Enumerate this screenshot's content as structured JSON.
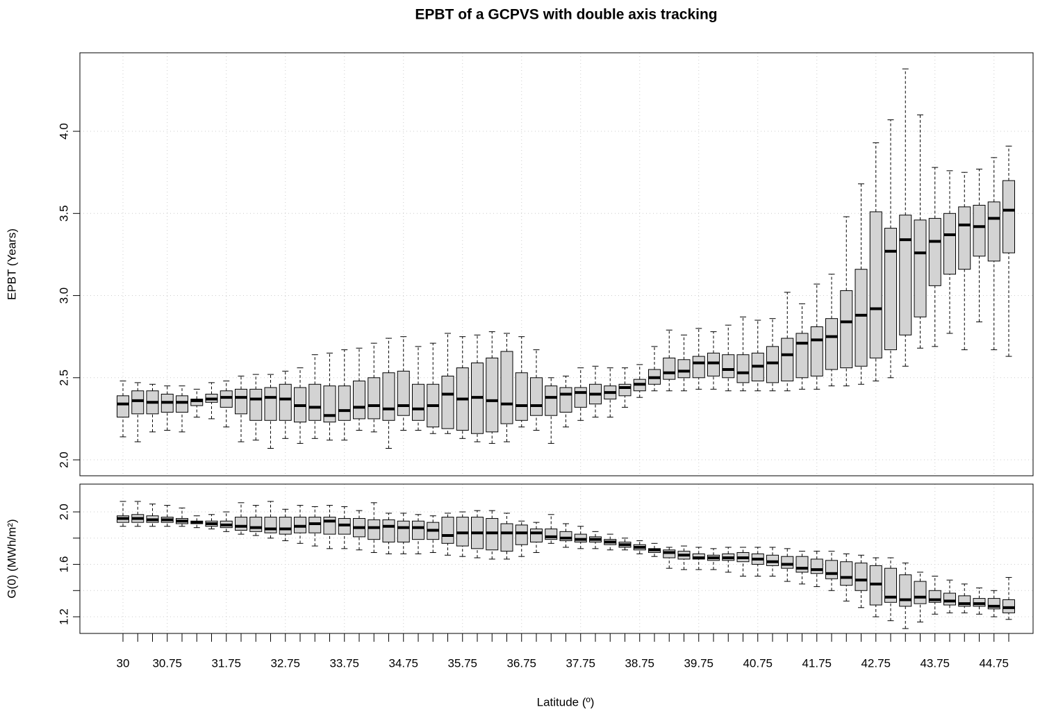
{
  "chart_data": [
    {
      "type": "boxplot",
      "title": "EPBT of a GCPVS with double axis tracking",
      "ylabel": "EPBT (Years)",
      "color": "#d3d3d3",
      "grid": true,
      "ylim": [
        1.903,
        4.478
      ],
      "yticks": [
        {
          "value": 2,
          "label": "2.0"
        },
        2.5,
        {
          "value": 3,
          "label": "3.0"
        },
        3.5,
        {
          "value": 4,
          "label": "4.0"
        }
      ],
      "boxes": [
        [
          2.14,
          2.26,
          2.34,
          2.39,
          2.48
        ],
        [
          2.11,
          2.28,
          2.36,
          2.42,
          2.47
        ],
        [
          2.17,
          2.28,
          2.35,
          2.42,
          2.46
        ],
        [
          2.18,
          2.29,
          2.35,
          2.4,
          2.45
        ],
        [
          2.17,
          2.29,
          2.35,
          2.39,
          2.45
        ],
        [
          2.26,
          2.33,
          2.36,
          2.37,
          2.43
        ],
        [
          2.25,
          2.35,
          2.37,
          2.4,
          2.47
        ],
        [
          2.2,
          2.32,
          2.38,
          2.42,
          2.48
        ],
        [
          2.11,
          2.28,
          2.38,
          2.43,
          2.51
        ],
        [
          2.12,
          2.24,
          2.37,
          2.43,
          2.52
        ],
        [
          2.07,
          2.24,
          2.38,
          2.44,
          2.52
        ],
        [
          2.13,
          2.24,
          2.37,
          2.46,
          2.54
        ],
        [
          2.1,
          2.23,
          2.33,
          2.44,
          2.56
        ],
        [
          2.13,
          2.24,
          2.32,
          2.46,
          2.64
        ],
        [
          2.12,
          2.23,
          2.27,
          2.45,
          2.65
        ],
        [
          2.12,
          2.24,
          2.3,
          2.45,
          2.67
        ],
        [
          2.18,
          2.25,
          2.32,
          2.48,
          2.68
        ],
        [
          2.17,
          2.25,
          2.33,
          2.5,
          2.71
        ],
        [
          2.07,
          2.24,
          2.31,
          2.53,
          2.74
        ],
        [
          2.18,
          2.27,
          2.33,
          2.54,
          2.75
        ],
        [
          2.18,
          2.24,
          2.31,
          2.46,
          2.69
        ],
        [
          2.16,
          2.2,
          2.33,
          2.46,
          2.71
        ],
        [
          2.16,
          2.19,
          2.4,
          2.51,
          2.77
        ],
        [
          2.13,
          2.18,
          2.37,
          2.56,
          2.75
        ],
        [
          2.11,
          2.16,
          2.38,
          2.59,
          2.76
        ],
        [
          2.1,
          2.17,
          2.36,
          2.62,
          2.78
        ],
        [
          2.11,
          2.22,
          2.34,
          2.66,
          2.77
        ],
        [
          2.2,
          2.24,
          2.33,
          2.53,
          2.75
        ],
        [
          2.18,
          2.27,
          2.33,
          2.5,
          2.67
        ],
        [
          2.1,
          2.27,
          2.38,
          2.45,
          2.5
        ],
        [
          2.2,
          2.29,
          2.4,
          2.44,
          2.51
        ],
        [
          2.24,
          2.32,
          2.41,
          2.44,
          2.56
        ],
        [
          2.26,
          2.34,
          2.4,
          2.46,
          2.57
        ],
        [
          2.26,
          2.37,
          2.41,
          2.45,
          2.56
        ],
        [
          2.32,
          2.39,
          2.44,
          2.46,
          2.56
        ],
        [
          2.38,
          2.42,
          2.46,
          2.49,
          2.58
        ],
        [
          2.42,
          2.46,
          2.5,
          2.55,
          2.69
        ],
        [
          2.42,
          2.49,
          2.53,
          2.62,
          2.79
        ],
        [
          2.42,
          2.5,
          2.54,
          2.61,
          2.76
        ],
        [
          2.43,
          2.5,
          2.59,
          2.63,
          2.8
        ],
        [
          2.43,
          2.51,
          2.59,
          2.65,
          2.78
        ],
        [
          2.42,
          2.5,
          2.55,
          2.64,
          2.82
        ],
        [
          2.42,
          2.47,
          2.53,
          2.64,
          2.87
        ],
        [
          2.42,
          2.48,
          2.57,
          2.65,
          2.85
        ],
        [
          2.42,
          2.47,
          2.59,
          2.69,
          2.86
        ],
        [
          2.42,
          2.48,
          2.64,
          2.74,
          3.02
        ],
        [
          2.43,
          2.5,
          2.71,
          2.77,
          2.95
        ],
        [
          2.43,
          2.51,
          2.73,
          2.81,
          3.07
        ],
        [
          2.45,
          2.55,
          2.75,
          2.86,
          3.13
        ],
        [
          2.45,
          2.56,
          2.84,
          3.03,
          3.48
        ],
        [
          2.46,
          2.57,
          2.88,
          3.16,
          3.68
        ],
        [
          2.48,
          2.62,
          2.92,
          3.51,
          3.93
        ],
        [
          2.5,
          2.67,
          3.27,
          3.41,
          4.07
        ],
        [
          2.57,
          2.76,
          3.34,
          3.49,
          4.38
        ],
        [
          2.68,
          2.87,
          3.26,
          3.46,
          4.1
        ],
        [
          2.69,
          3.06,
          3.33,
          3.47,
          3.78
        ],
        [
          2.77,
          3.13,
          3.37,
          3.5,
          3.76
        ],
        [
          2.67,
          3.16,
          3.43,
          3.54,
          3.75
        ],
        [
          2.84,
          3.24,
          3.42,
          3.55,
          3.77
        ],
        [
          2.67,
          3.21,
          3.47,
          3.57,
          3.84
        ],
        [
          2.63,
          3.26,
          3.52,
          3.7,
          3.91
        ]
      ]
    },
    {
      "type": "boxplot",
      "ylabel": "G(0) (MWh/m²)",
      "xlabel": "Latitude (º)",
      "color": "#d3d3d3",
      "grid": true,
      "ylim": [
        1.073,
        2.212
      ],
      "yticks": [
        1.2,
        1.6,
        {
          "value": 2,
          "label": "2.0"
        }
      ],
      "yticks_minor": [
        1.4,
        1.8
      ],
      "categories": [
        "30",
        null,
        null,
        "30.75",
        null,
        null,
        null,
        "31.75",
        null,
        null,
        null,
        "32.75",
        null,
        null,
        null,
        "33.75",
        null,
        null,
        null,
        "34.75",
        null,
        null,
        null,
        "35.75",
        null,
        null,
        null,
        "36.75",
        null,
        null,
        null,
        "37.75",
        null,
        null,
        null,
        "38.75",
        null,
        null,
        null,
        "39.75",
        null,
        null,
        null,
        "40.75",
        null,
        null,
        null,
        "41.75",
        null,
        null,
        null,
        "42.75",
        null,
        null,
        null,
        "43.75",
        null,
        null,
        null,
        "44.75",
        null
      ],
      "boxes": [
        [
          1.89,
          1.92,
          1.95,
          1.97,
          2.08
        ],
        [
          1.89,
          1.92,
          1.95,
          1.98,
          2.08
        ],
        [
          1.89,
          1.92,
          1.94,
          1.97,
          2.06
        ],
        [
          1.89,
          1.92,
          1.94,
          1.96,
          2.05
        ],
        [
          1.89,
          1.91,
          1.93,
          1.95,
          2.03
        ],
        [
          1.88,
          1.91,
          1.92,
          1.93,
          1.97
        ],
        [
          1.87,
          1.89,
          1.91,
          1.93,
          1.98
        ],
        [
          1.85,
          1.88,
          1.9,
          1.93,
          2.0
        ],
        [
          1.83,
          1.86,
          1.89,
          1.96,
          2.07
        ],
        [
          1.82,
          1.85,
          1.88,
          1.96,
          2.05
        ],
        [
          1.8,
          1.84,
          1.87,
          1.96,
          2.08
        ],
        [
          1.78,
          1.83,
          1.87,
          1.96,
          2.02
        ],
        [
          1.76,
          1.84,
          1.89,
          1.96,
          2.05
        ],
        [
          1.74,
          1.84,
          1.91,
          1.96,
          2.04
        ],
        [
          1.72,
          1.83,
          1.93,
          1.96,
          2.05
        ],
        [
          1.72,
          1.83,
          1.9,
          1.95,
          2.04
        ],
        [
          1.71,
          1.81,
          1.88,
          1.95,
          2.01
        ],
        [
          1.69,
          1.79,
          1.88,
          1.94,
          2.07
        ],
        [
          1.68,
          1.77,
          1.89,
          1.94,
          1.99
        ],
        [
          1.68,
          1.77,
          1.88,
          1.93,
          1.99
        ],
        [
          1.68,
          1.79,
          1.88,
          1.93,
          1.98
        ],
        [
          1.69,
          1.79,
          1.86,
          1.92,
          1.97
        ],
        [
          1.67,
          1.76,
          1.82,
          1.96,
          1.99
        ],
        [
          1.66,
          1.74,
          1.84,
          1.96,
          2.0
        ],
        [
          1.65,
          1.72,
          1.84,
          1.96,
          2.01
        ],
        [
          1.64,
          1.71,
          1.84,
          1.95,
          2.01
        ],
        [
          1.64,
          1.7,
          1.84,
          1.91,
          1.99
        ],
        [
          1.66,
          1.75,
          1.84,
          1.9,
          1.93
        ],
        [
          1.69,
          1.77,
          1.84,
          1.87,
          1.92
        ],
        [
          1.76,
          1.79,
          1.81,
          1.87,
          1.98
        ],
        [
          1.73,
          1.78,
          1.8,
          1.85,
          1.91
        ],
        [
          1.72,
          1.77,
          1.79,
          1.83,
          1.89
        ],
        [
          1.72,
          1.77,
          1.79,
          1.81,
          1.85
        ],
        [
          1.71,
          1.75,
          1.77,
          1.79,
          1.83
        ],
        [
          1.71,
          1.73,
          1.75,
          1.77,
          1.8
        ],
        [
          1.68,
          1.71,
          1.73,
          1.75,
          1.78
        ],
        [
          1.66,
          1.69,
          1.71,
          1.72,
          1.76
        ],
        [
          1.57,
          1.65,
          1.69,
          1.71,
          1.73
        ],
        [
          1.56,
          1.64,
          1.67,
          1.7,
          1.74
        ],
        [
          1.56,
          1.64,
          1.65,
          1.68,
          1.73
        ],
        [
          1.56,
          1.63,
          1.65,
          1.67,
          1.72
        ],
        [
          1.54,
          1.63,
          1.65,
          1.68,
          1.73
        ],
        [
          1.51,
          1.62,
          1.65,
          1.69,
          1.73
        ],
        [
          1.51,
          1.6,
          1.64,
          1.68,
          1.73
        ],
        [
          1.51,
          1.59,
          1.62,
          1.67,
          1.73
        ],
        [
          1.47,
          1.57,
          1.6,
          1.66,
          1.72
        ],
        [
          1.45,
          1.54,
          1.57,
          1.66,
          1.7
        ],
        [
          1.43,
          1.53,
          1.56,
          1.64,
          1.7
        ],
        [
          1.4,
          1.49,
          1.53,
          1.63,
          1.7
        ],
        [
          1.32,
          1.44,
          1.5,
          1.62,
          1.68
        ],
        [
          1.27,
          1.4,
          1.48,
          1.61,
          1.67
        ],
        [
          1.2,
          1.29,
          1.45,
          1.59,
          1.65
        ],
        [
          1.17,
          1.31,
          1.35,
          1.57,
          1.65
        ],
        [
          1.11,
          1.28,
          1.33,
          1.52,
          1.61
        ],
        [
          1.16,
          1.3,
          1.35,
          1.47,
          1.54
        ],
        [
          1.22,
          1.31,
          1.33,
          1.4,
          1.51
        ],
        [
          1.23,
          1.29,
          1.32,
          1.38,
          1.48
        ],
        [
          1.23,
          1.28,
          1.3,
          1.36,
          1.45
        ],
        [
          1.22,
          1.28,
          1.3,
          1.34,
          1.42
        ],
        [
          1.2,
          1.26,
          1.28,
          1.34,
          1.4
        ],
        [
          1.18,
          1.23,
          1.27,
          1.33,
          1.5
        ]
      ]
    }
  ]
}
